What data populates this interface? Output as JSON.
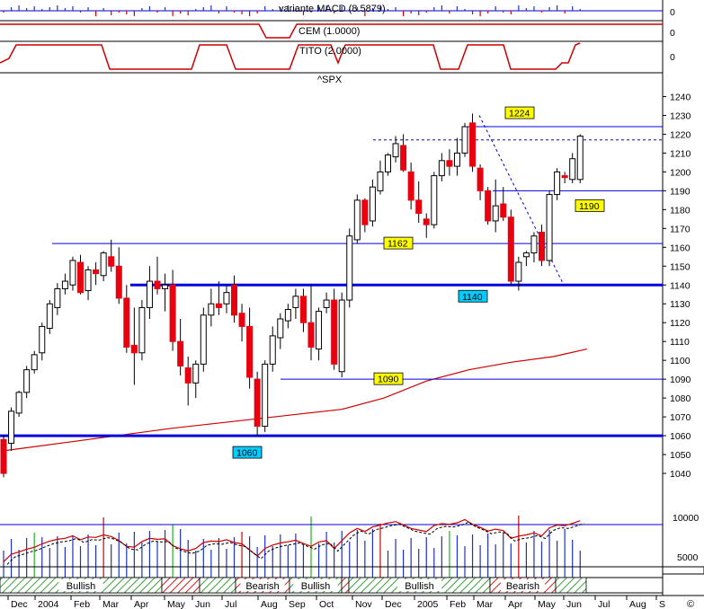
{
  "panels": {
    "macd": {
      "label": "variante MACD (8.5879)",
      "axis_label": "0"
    },
    "cem": {
      "label": "CEM (1.0000)",
      "axis_label": "0"
    },
    "tito": {
      "label": "TITO (2.0000)",
      "axis_label": "0"
    },
    "volume": {
      "axis_labels": [
        "10000",
        "5000"
      ]
    }
  },
  "copyright": "©",
  "colors": {
    "bull_candle": "#ffffff",
    "bear_candle": "#e8000f",
    "support_line": "#0000dd",
    "moving_average": "#d00000",
    "annotation_box": "#ffff00",
    "support_box": "#00ccff",
    "volume_bar": "#2030c0",
    "regime_fill": "#9bd79b"
  },
  "chart_data": {
    "type": "candlestick",
    "title": "^SPX",
    "ylim": [
      1030,
      1245
    ],
    "y_ticks": [
      1040,
      1050,
      1060,
      1070,
      1080,
      1090,
      1100,
      1110,
      1120,
      1130,
      1140,
      1150,
      1160,
      1170,
      1180,
      1190,
      1200,
      1210,
      1220,
      1230,
      1240
    ],
    "x_month_labels": [
      "Dec",
      "2004",
      "Feb",
      "Mar",
      "Apr",
      "May",
      "Jun",
      "Jul",
      "Aug",
      "Sep",
      "Oct",
      "Nov",
      "Dec",
      "2005",
      "Feb",
      "Mar",
      "Apr",
      "May",
      "Jun",
      "Jul",
      "Aug",
      "S"
    ],
    "ohlc": [
      [
        1058,
        1060,
        1038,
        1040
      ],
      [
        1056,
        1075,
        1052,
        1073
      ],
      [
        1072,
        1084,
        1070,
        1083
      ],
      [
        1083,
        1097,
        1080,
        1095
      ],
      [
        1095,
        1105,
        1093,
        1103
      ],
      [
        1104,
        1120,
        1100,
        1118
      ],
      [
        1117,
        1132,
        1114,
        1130
      ],
      [
        1128,
        1141,
        1124,
        1138
      ],
      [
        1138,
        1146,
        1135,
        1142
      ],
      [
        1140,
        1155,
        1137,
        1153
      ],
      [
        1152,
        1156,
        1135,
        1136
      ],
      [
        1137,
        1150,
        1132,
        1148
      ],
      [
        1148,
        1152,
        1140,
        1146
      ],
      [
        1145,
        1158,
        1142,
        1157
      ],
      [
        1155,
        1164,
        1147,
        1150
      ],
      [
        1150,
        1160,
        1130,
        1133
      ],
      [
        1133,
        1140,
        1104,
        1107
      ],
      [
        1108,
        1128,
        1087,
        1104
      ],
      [
        1104,
        1132,
        1100,
        1128
      ],
      [
        1128,
        1150,
        1122,
        1142
      ],
      [
        1142,
        1155,
        1135,
        1138
      ],
      [
        1138,
        1146,
        1126,
        1140
      ],
      [
        1140,
        1148,
        1105,
        1110
      ],
      [
        1110,
        1122,
        1092,
        1097
      ],
      [
        1096,
        1102,
        1076,
        1088
      ],
      [
        1088,
        1100,
        1080,
        1098
      ],
      [
        1098,
        1128,
        1094,
        1124
      ],
      [
        1124,
        1138,
        1118,
        1130
      ],
      [
        1130,
        1142,
        1124,
        1128
      ],
      [
        1130,
        1140,
        1125,
        1136
      ],
      [
        1140,
        1145,
        1120,
        1124
      ],
      [
        1125,
        1130,
        1110,
        1118
      ],
      [
        1118,
        1128,
        1085,
        1091
      ],
      [
        1090,
        1094,
        1060,
        1065
      ],
      [
        1065,
        1100,
        1062,
        1098
      ],
      [
        1098,
        1118,
        1094,
        1113
      ],
      [
        1112,
        1125,
        1106,
        1122
      ],
      [
        1121,
        1130,
        1117,
        1127
      ],
      [
        1128,
        1138,
        1122,
        1134
      ],
      [
        1134,
        1138,
        1115,
        1120
      ],
      [
        1120,
        1140,
        1100,
        1107
      ],
      [
        1106,
        1128,
        1100,
        1126
      ],
      [
        1128,
        1136,
        1125,
        1132
      ],
      [
        1132,
        1138,
        1095,
        1098
      ],
      [
        1094,
        1136,
        1091,
        1132
      ],
      [
        1132,
        1170,
        1128,
        1166
      ],
      [
        1164,
        1188,
        1162,
        1185
      ],
      [
        1185,
        1186,
        1168,
        1172
      ],
      [
        1174,
        1196,
        1171,
        1192
      ],
      [
        1190,
        1206,
        1188,
        1200
      ],
      [
        1200,
        1210,
        1198,
        1209
      ],
      [
        1208,
        1219,
        1205,
        1215
      ],
      [
        1214,
        1220,
        1200,
        1201
      ],
      [
        1200,
        1205,
        1180,
        1185
      ],
      [
        1185,
        1195,
        1173,
        1178
      ],
      [
        1175,
        1178,
        1165,
        1172
      ],
      [
        1172,
        1200,
        1170,
        1198
      ],
      [
        1198,
        1210,
        1195,
        1206
      ],
      [
        1206,
        1212,
        1198,
        1203
      ],
      [
        1203,
        1218,
        1198,
        1210
      ],
      [
        1210,
        1226,
        1208,
        1224
      ],
      [
        1226,
        1231,
        1200,
        1203
      ],
      [
        1202,
        1204,
        1185,
        1190
      ],
      [
        1190,
        1192,
        1172,
        1174
      ],
      [
        1174,
        1196,
        1168,
        1182
      ],
      [
        1183,
        1192,
        1174,
        1176
      ],
      [
        1176,
        1180,
        1140,
        1142
      ],
      [
        1142,
        1155,
        1137,
        1152
      ],
      [
        1155,
        1158,
        1150,
        1157
      ],
      [
        1157,
        1168,
        1152,
        1166
      ],
      [
        1168,
        1172,
        1150,
        1153
      ],
      [
        1153,
        1190,
        1150,
        1188
      ],
      [
        1188,
        1202,
        1185,
        1200
      ],
      [
        1198,
        1200,
        1194,
        1197
      ],
      [
        1196,
        1210,
        1194,
        1207
      ],
      [
        1196,
        1220,
        1194,
        1219
      ]
    ],
    "moving_average": [
      [
        0,
        1052
      ],
      [
        10,
        1058
      ],
      [
        20,
        1064
      ],
      [
        30,
        1069
      ],
      [
        40,
        1074
      ],
      [
        45,
        1080
      ],
      [
        50,
        1089
      ],
      [
        55,
        1095
      ],
      [
        60,
        1099
      ],
      [
        65,
        1102
      ],
      [
        69,
        1106
      ]
    ],
    "support_lines": [
      {
        "value": 1224,
        "style": "solid",
        "thickness": "thin",
        "label": "1224",
        "label_style": "yellow"
      },
      {
        "value": 1217,
        "style": "dashed",
        "thickness": "thin"
      },
      {
        "value": 1190,
        "style": "solid",
        "thickness": "thin",
        "label": "1190",
        "label_style": "yellow"
      },
      {
        "value": 1162,
        "style": "solid",
        "thickness": "thin",
        "label": "1162",
        "label_style": "yellow"
      },
      {
        "value": 1140,
        "style": "solid",
        "thickness": "thick",
        "label": "1140",
        "label_style": "cyan"
      },
      {
        "value": 1090,
        "style": "solid",
        "thickness": "thin",
        "label": "1090",
        "label_style": "yellow"
      },
      {
        "value": 1060,
        "style": "solid",
        "thickness": "thick",
        "label": "1060",
        "label_style": "cyan"
      }
    ],
    "trend_line": {
      "from": [
        1230,
        "Mar"
      ],
      "to": [
        1140,
        "May"
      ],
      "style": "dashed"
    },
    "regimes": [
      {
        "label": "Bullish",
        "style": "green-hatch"
      },
      {
        "label": "",
        "style": "red-hatch"
      },
      {
        "label": "",
        "style": "green-hatch"
      },
      {
        "label": "Bearish",
        "style": "red-hatch"
      },
      {
        "label": "Bullish",
        "style": "green-hatch"
      },
      {
        "label": "",
        "style": "red-hatch"
      },
      {
        "label": "Bullish",
        "style": "green-hatch"
      },
      {
        "label": "Bearish",
        "style": "red-hatch"
      },
      {
        "label": "",
        "style": "green-hatch"
      }
    ]
  }
}
